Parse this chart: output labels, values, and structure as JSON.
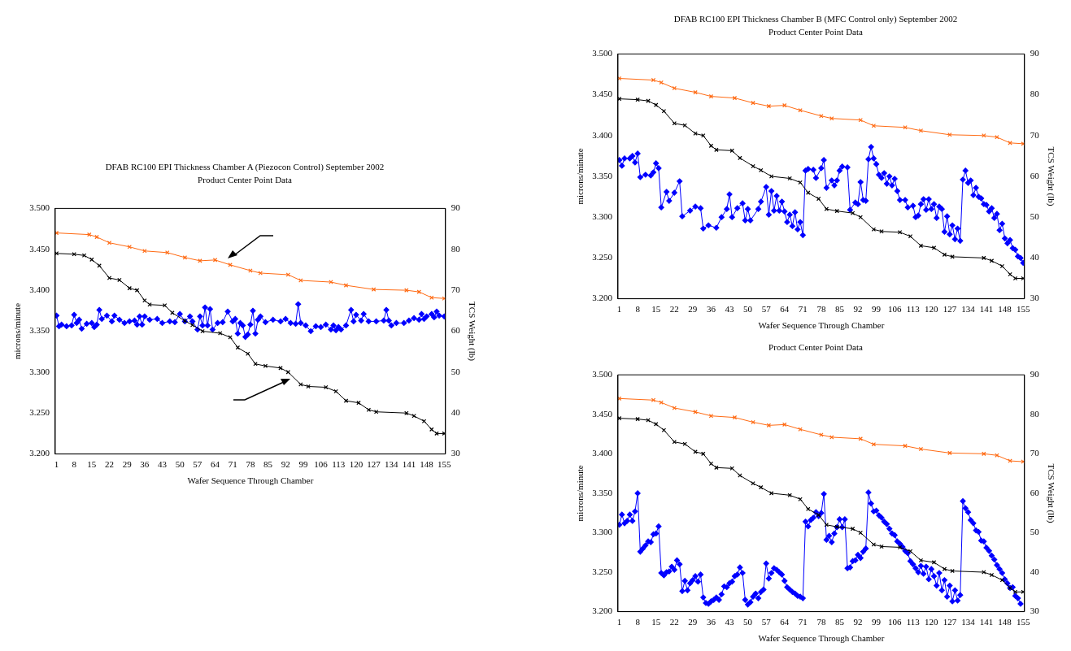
{
  "chart_data": [
    {
      "type": "line",
      "title": "DFAB RC100 EPI Thickness Chamber A (Piezocon Control) September 2002",
      "subtitle": "Product Center Point Data",
      "xlabel": "Wafer Sequence Through Chamber",
      "ylabel": "microns/minute",
      "y2label": "TCS Weight (lb)",
      "xlim": [
        0.5,
        155.5
      ],
      "xticks": [
        1,
        8,
        15,
        22,
        29,
        36,
        43,
        50,
        57,
        64,
        71,
        78,
        85,
        92,
        99,
        106,
        113,
        120,
        127,
        134,
        141,
        148,
        155
      ],
      "ylim": [
        3.2,
        3.5
      ],
      "yticks": [
        {
          "value": 3.2,
          "label": "3.200"
        },
        {
          "value": 3.25,
          "label": "3.250"
        },
        {
          "value": 3.3,
          "label": "3.300"
        },
        {
          "value": 3.35,
          "label": "3.350"
        },
        {
          "value": 3.4,
          "label": "3.400"
        },
        {
          "value": 3.45,
          "label": "3.450"
        },
        {
          "value": 3.5,
          "label": "3.500"
        }
      ],
      "y2lim": [
        30,
        90
      ],
      "y2ticks": [
        30,
        40,
        50,
        60,
        70,
        80,
        90
      ],
      "grid": false,
      "legend": false,
      "series": [
        {
          "type": "line",
          "color": "#ff6a13",
          "marker": "cross",
          "x": [
            1,
            14,
            17,
            22,
            30,
            36,
            45,
            52,
            58,
            64,
            70,
            78,
            82,
            93,
            98,
            110,
            116,
            127,
            140,
            145,
            150,
            155
          ],
          "values": [
            3.47,
            3.468,
            3.465,
            3.458,
            3.453,
            3.448,
            3.446,
            3.44,
            3.436,
            3.437,
            3.431,
            3.424,
            3.421,
            3.419,
            3.412,
            3.41,
            3.406,
            3.401,
            3.4,
            3.398,
            3.391,
            3.39
          ]
        },
        {
          "type": "line",
          "color": "#000000",
          "marker": "cross",
          "axis": "y2",
          "x": [
            1,
            8,
            12,
            15,
            18,
            22,
            26,
            30,
            33,
            36,
            38,
            44,
            47,
            52,
            55,
            59,
            66,
            70,
            73,
            77,
            80,
            84,
            90,
            93,
            98,
            101,
            108,
            112,
            116,
            121,
            125,
            128,
            140,
            143,
            147,
            150,
            152,
            155
          ],
          "values": [
            79,
            78.8,
            78.5,
            77.5,
            76,
            73,
            72.5,
            70.5,
            70,
            67.5,
            66.5,
            66.3,
            64.5,
            62.5,
            61.5,
            60,
            59.5,
            58.5,
            56,
            54.5,
            52,
            51.5,
            51,
            50,
            47,
            46.5,
            46.3,
            45.3,
            43,
            42.5,
            40.8,
            40.3,
            40,
            39.3,
            38,
            36,
            35,
            35
          ]
        },
        {
          "type": "line",
          "color": "#0000ff",
          "marker": "diamond",
          "x": [
            1,
            2,
            3,
            5,
            7,
            8,
            9,
            10,
            11,
            13,
            15,
            16,
            17,
            18,
            19,
            21,
            23,
            24,
            26,
            28,
            30,
            32,
            33,
            34,
            35,
            36,
            38,
            41,
            43,
            46,
            48,
            50,
            52,
            54,
            55,
            57,
            58,
            59,
            60,
            61,
            62,
            63,
            65,
            67,
            69,
            71,
            72,
            73,
            74,
            75,
            76,
            77,
            78,
            79,
            80,
            81,
            82,
            84,
            87,
            90,
            92,
            94,
            96,
            97,
            98,
            100,
            102,
            104,
            106,
            108,
            110,
            111,
            112,
            113,
            114,
            116,
            118,
            119,
            120,
            122,
            123,
            125,
            128,
            131,
            132,
            133,
            134,
            136,
            139,
            141,
            143,
            145,
            146,
            147,
            148,
            150,
            151,
            152,
            153,
            155
          ],
          "values": [
            3.369,
            3.356,
            3.358,
            3.356,
            3.357,
            3.37,
            3.36,
            3.364,
            3.353,
            3.359,
            3.36,
            3.355,
            3.358,
            3.376,
            3.365,
            3.369,
            3.362,
            3.369,
            3.364,
            3.36,
            3.362,
            3.363,
            3.358,
            3.368,
            3.358,
            3.368,
            3.364,
            3.365,
            3.36,
            3.362,
            3.361,
            3.371,
            3.362,
            3.368,
            3.362,
            3.352,
            3.368,
            3.357,
            3.379,
            3.357,
            3.377,
            3.352,
            3.36,
            3.361,
            3.374,
            3.362,
            3.365,
            3.347,
            3.36,
            3.357,
            3.343,
            3.346,
            3.358,
            3.375,
            3.347,
            3.364,
            3.368,
            3.361,
            3.364,
            3.362,
            3.365,
            3.36,
            3.359,
            3.383,
            3.36,
            3.357,
            3.35,
            3.356,
            3.355,
            3.358,
            3.352,
            3.357,
            3.351,
            3.355,
            3.352,
            3.357,
            3.376,
            3.362,
            3.37,
            3.363,
            3.371,
            3.362,
            3.362,
            3.363,
            3.376,
            3.363,
            3.357,
            3.36,
            3.36,
            3.363,
            3.366,
            3.364,
            3.371,
            3.365,
            3.368,
            3.371,
            3.367,
            3.374,
            3.369,
            3.368
          ]
        }
      ]
    },
    {
      "type": "line",
      "title": "DFAB RC100 EPI Thickness Chamber B (MFC Control only) September 2002",
      "subtitle": "Product Center Point Data",
      "xlabel": "Wafer Sequence Through Chamber",
      "ylabel": "microns/minute",
      "y2label": "TCS Weight (lb)",
      "xlim": [
        0.5,
        155.5
      ],
      "xticks": [
        1,
        8,
        15,
        22,
        29,
        36,
        43,
        50,
        57,
        64,
        71,
        78,
        85,
        92,
        99,
        106,
        113,
        120,
        127,
        134,
        141,
        148,
        155
      ],
      "ylim": [
        3.2,
        3.5
      ],
      "yticks": [
        {
          "value": 3.2,
          "label": "3.200"
        },
        {
          "value": 3.25,
          "label": "3.250"
        },
        {
          "value": 3.3,
          "label": "3.300"
        },
        {
          "value": 3.35,
          "label": "3.350"
        },
        {
          "value": 3.4,
          "label": "3.400"
        },
        {
          "value": 3.45,
          "label": "3.450"
        },
        {
          "value": 3.5,
          "label": "3.500"
        }
      ],
      "y2lim": [
        30,
        90
      ],
      "y2ticks": [
        30,
        40,
        50,
        60,
        70,
        80,
        90
      ],
      "grid": false,
      "legend": false,
      "series": [
        {
          "type": "line",
          "color": "#ff6a13",
          "marker": "cross",
          "x": [
            1,
            14,
            17,
            22,
            30,
            36,
            45,
            52,
            58,
            64,
            70,
            78,
            82,
            93,
            98,
            110,
            116,
            127,
            140,
            145,
            150,
            155
          ],
          "values": [
            3.47,
            3.468,
            3.465,
            3.458,
            3.453,
            3.448,
            3.446,
            3.44,
            3.436,
            3.437,
            3.431,
            3.424,
            3.421,
            3.419,
            3.412,
            3.41,
            3.406,
            3.401,
            3.4,
            3.398,
            3.391,
            3.39
          ]
        },
        {
          "type": "line",
          "color": "#000000",
          "marker": "cross",
          "axis": "y2",
          "x": [
            1,
            8,
            12,
            15,
            18,
            22,
            26,
            30,
            33,
            36,
            38,
            44,
            47,
            52,
            55,
            59,
            66,
            70,
            73,
            77,
            80,
            84,
            90,
            93,
            98,
            101,
            108,
            112,
            116,
            121,
            125,
            128,
            140,
            143,
            147,
            150,
            152,
            155
          ],
          "values": [
            79,
            78.8,
            78.5,
            77.5,
            76,
            73,
            72.5,
            70.5,
            70,
            67.5,
            66.5,
            66.3,
            64.5,
            62.5,
            61.5,
            60,
            59.5,
            58.5,
            56,
            54.5,
            52,
            51.5,
            51,
            50,
            47,
            46.5,
            46.3,
            45.3,
            43,
            42.5,
            40.8,
            40.3,
            40,
            39.3,
            38,
            36,
            35,
            35
          ]
        },
        {
          "type": "line",
          "color": "#0000ff",
          "marker": "diamond",
          "x": [
            1,
            2,
            3,
            5,
            6,
            7,
            8,
            9,
            11,
            13,
            14,
            15,
            16,
            17,
            19,
            20,
            22,
            24,
            25,
            28,
            30,
            32,
            33,
            35,
            38,
            40,
            42,
            43,
            44,
            46,
            48,
            49,
            50,
            51,
            54,
            55,
            57,
            58,
            59,
            60,
            61,
            62,
            63,
            64,
            65,
            66,
            67,
            68,
            69,
            70,
            71,
            72,
            73,
            75,
            76,
            78,
            79,
            80,
            82,
            83,
            84,
            85,
            86,
            88,
            89,
            91,
            92,
            93,
            94,
            95,
            96,
            97,
            98,
            99,
            100,
            101,
            102,
            103,
            104,
            105,
            106,
            107,
            108,
            110,
            111,
            113,
            114,
            115,
            116,
            117,
            118,
            119,
            120,
            121,
            122,
            123,
            124,
            125,
            126,
            127,
            128,
            129,
            130,
            131,
            132,
            133,
            134,
            135,
            136,
            137,
            138,
            139,
            140,
            141,
            142,
            143,
            144,
            145,
            146,
            147,
            148,
            149,
            150,
            151,
            152,
            153,
            154,
            155
          ],
          "values": [
            3.37,
            3.363,
            3.372,
            3.372,
            3.375,
            3.367,
            3.378,
            3.349,
            3.352,
            3.351,
            3.355,
            3.366,
            3.36,
            3.312,
            3.331,
            3.32,
            3.33,
            3.344,
            3.301,
            3.308,
            3.313,
            3.311,
            3.286,
            3.29,
            3.287,
            3.3,
            3.31,
            3.328,
            3.3,
            3.311,
            3.317,
            3.296,
            3.31,
            3.296,
            3.31,
            3.319,
            3.337,
            3.303,
            3.332,
            3.308,
            3.326,
            3.308,
            3.319,
            3.307,
            3.294,
            3.303,
            3.289,
            3.306,
            3.285,
            3.294,
            3.278,
            3.357,
            3.359,
            3.358,
            3.348,
            3.36,
            3.37,
            3.336,
            3.345,
            3.339,
            3.345,
            3.357,
            3.362,
            3.361,
            3.309,
            3.318,
            3.316,
            3.343,
            3.321,
            3.32,
            3.371,
            3.386,
            3.372,
            3.365,
            3.352,
            3.348,
            3.354,
            3.341,
            3.35,
            3.339,
            3.347,
            3.332,
            3.321,
            3.321,
            3.312,
            3.314,
            3.3,
            3.302,
            3.316,
            3.322,
            3.309,
            3.322,
            3.31,
            3.316,
            3.299,
            3.313,
            3.31,
            3.282,
            3.301,
            3.279,
            3.29,
            3.273,
            3.286,
            3.271,
            3.346,
            3.357,
            3.342,
            3.345,
            3.327,
            3.336,
            3.325,
            3.323,
            3.316,
            3.315,
            3.307,
            3.311,
            3.299,
            3.304,
            3.284,
            3.292,
            3.274,
            3.268,
            3.272,
            3.262,
            3.26,
            3.252,
            3.25,
            3.244
          ]
        }
      ]
    },
    {
      "type": "line",
      "subtitle": "Product Center Point Data",
      "xlabel": "Wafer Sequence Through Chamber",
      "ylabel": "microns/minute",
      "y2label": "TCS Weight (lb)",
      "xlim": [
        0.5,
        155.5
      ],
      "xticks": [
        1,
        8,
        15,
        22,
        29,
        36,
        43,
        50,
        57,
        64,
        71,
        78,
        85,
        92,
        99,
        106,
        113,
        120,
        127,
        134,
        141,
        148,
        155
      ],
      "ylim": [
        3.2,
        3.5
      ],
      "yticks": [
        {
          "value": 3.2,
          "label": "3.200"
        },
        {
          "value": 3.25,
          "label": "3.250"
        },
        {
          "value": 3.3,
          "label": "3.300"
        },
        {
          "value": 3.35,
          "label": "3.350"
        },
        {
          "value": 3.4,
          "label": "3.400"
        },
        {
          "value": 3.45,
          "label": "3.450"
        },
        {
          "value": 3.5,
          "label": "3.500"
        }
      ],
      "y2lim": [
        30,
        90
      ],
      "y2ticks": [
        30,
        40,
        50,
        60,
        70,
        80,
        90
      ],
      "grid": false,
      "legend": false,
      "series": [
        {
          "type": "line",
          "color": "#ff6a13",
          "marker": "cross",
          "x": [
            1,
            14,
            17,
            22,
            30,
            36,
            45,
            52,
            58,
            64,
            70,
            78,
            82,
            93,
            98,
            110,
            116,
            127,
            140,
            145,
            150,
            155
          ],
          "values": [
            3.47,
            3.468,
            3.465,
            3.458,
            3.453,
            3.448,
            3.446,
            3.44,
            3.436,
            3.437,
            3.431,
            3.424,
            3.421,
            3.419,
            3.412,
            3.41,
            3.406,
            3.401,
            3.4,
            3.398,
            3.391,
            3.39
          ]
        },
        {
          "type": "line",
          "color": "#000000",
          "marker": "cross",
          "axis": "y2",
          "x": [
            1,
            8,
            12,
            15,
            18,
            22,
            26,
            30,
            33,
            36,
            38,
            44,
            47,
            52,
            55,
            59,
            66,
            70,
            73,
            77,
            80,
            84,
            90,
            93,
            98,
            101,
            108,
            112,
            116,
            121,
            125,
            128,
            140,
            143,
            147,
            150,
            152,
            155
          ],
          "values": [
            79,
            78.8,
            78.5,
            77.5,
            76,
            73,
            72.5,
            70.5,
            70,
            67.5,
            66.5,
            66.3,
            64.5,
            62.5,
            61.5,
            60,
            59.5,
            58.5,
            56,
            54.5,
            52,
            51.5,
            51,
            50,
            47,
            46.5,
            46.3,
            45.3,
            43,
            42.5,
            40.8,
            40.3,
            40,
            39.3,
            38,
            36,
            35,
            35
          ]
        },
        {
          "type": "line",
          "color": "#0000ff",
          "marker": "diamond",
          "x": [
            1,
            2,
            3,
            4,
            5,
            6,
            7,
            8,
            9,
            10,
            11,
            12,
            13,
            14,
            15,
            16,
            17,
            18,
            19,
            20,
            21,
            22,
            23,
            24,
            25,
            26,
            27,
            28,
            29,
            30,
            31,
            32,
            33,
            34,
            35,
            36,
            37,
            38,
            39,
            40,
            41,
            42,
            43,
            44,
            45,
            46,
            47,
            48,
            49,
            50,
            51,
            52,
            53,
            54,
            55,
            56,
            57,
            58,
            59,
            60,
            61,
            62,
            63,
            64,
            65,
            66,
            67,
            68,
            69,
            70,
            71,
            72,
            73,
            74,
            75,
            76,
            77,
            78,
            79,
            80,
            81,
            82,
            83,
            84,
            85,
            86,
            87,
            88,
            89,
            90,
            91,
            92,
            93,
            94,
            95,
            96,
            97,
            98,
            99,
            100,
            101,
            102,
            103,
            104,
            105,
            106,
            107,
            108,
            109,
            110,
            111,
            112,
            113,
            114,
            115,
            116,
            117,
            118,
            119,
            120,
            121,
            122,
            123,
            124,
            125,
            126,
            127,
            128,
            129,
            130,
            131,
            132,
            133,
            134,
            135,
            136,
            137,
            138,
            139,
            140,
            141,
            142,
            143,
            144,
            145,
            146,
            147,
            148,
            149,
            150,
            151,
            152,
            153,
            154
          ],
          "values": [
            3.31,
            3.323,
            3.312,
            3.315,
            3.323,
            3.315,
            3.327,
            3.35,
            3.276,
            3.28,
            3.284,
            3.289,
            3.288,
            3.298,
            3.299,
            3.308,
            3.249,
            3.246,
            3.25,
            3.251,
            3.257,
            3.253,
            3.265,
            3.26,
            3.226,
            3.239,
            3.227,
            3.236,
            3.24,
            3.245,
            3.238,
            3.247,
            3.218,
            3.211,
            3.21,
            3.213,
            3.215,
            3.218,
            3.215,
            3.222,
            3.232,
            3.231,
            3.236,
            3.238,
            3.245,
            3.247,
            3.256,
            3.249,
            3.215,
            3.209,
            3.212,
            3.219,
            3.223,
            3.217,
            3.225,
            3.228,
            3.261,
            3.242,
            3.249,
            3.255,
            3.253,
            3.25,
            3.247,
            3.239,
            3.231,
            3.228,
            3.225,
            3.223,
            3.22,
            3.219,
            3.217,
            3.314,
            3.308,
            3.316,
            3.319,
            3.326,
            3.321,
            3.325,
            3.349,
            3.291,
            3.296,
            3.288,
            3.299,
            3.307,
            3.317,
            3.307,
            3.317,
            3.255,
            3.256,
            3.264,
            3.265,
            3.272,
            3.268,
            3.276,
            3.28,
            3.351,
            3.337,
            3.327,
            3.328,
            3.322,
            3.319,
            3.314,
            3.311,
            3.305,
            3.299,
            3.297,
            3.289,
            3.286,
            3.282,
            3.277,
            3.274,
            3.264,
            3.26,
            3.255,
            3.25,
            3.258,
            3.248,
            3.257,
            3.241,
            3.254,
            3.245,
            3.233,
            3.249,
            3.227,
            3.24,
            3.219,
            3.233,
            3.213,
            3.227,
            3.214,
            3.221,
            3.34,
            3.331,
            3.326,
            3.316,
            3.312,
            3.303,
            3.301,
            3.29,
            3.289,
            3.281,
            3.277,
            3.271,
            3.266,
            3.259,
            3.254,
            3.249,
            3.241,
            3.236,
            3.23,
            3.231,
            3.22,
            3.217,
            3.21
          ]
        }
      ]
    }
  ]
}
